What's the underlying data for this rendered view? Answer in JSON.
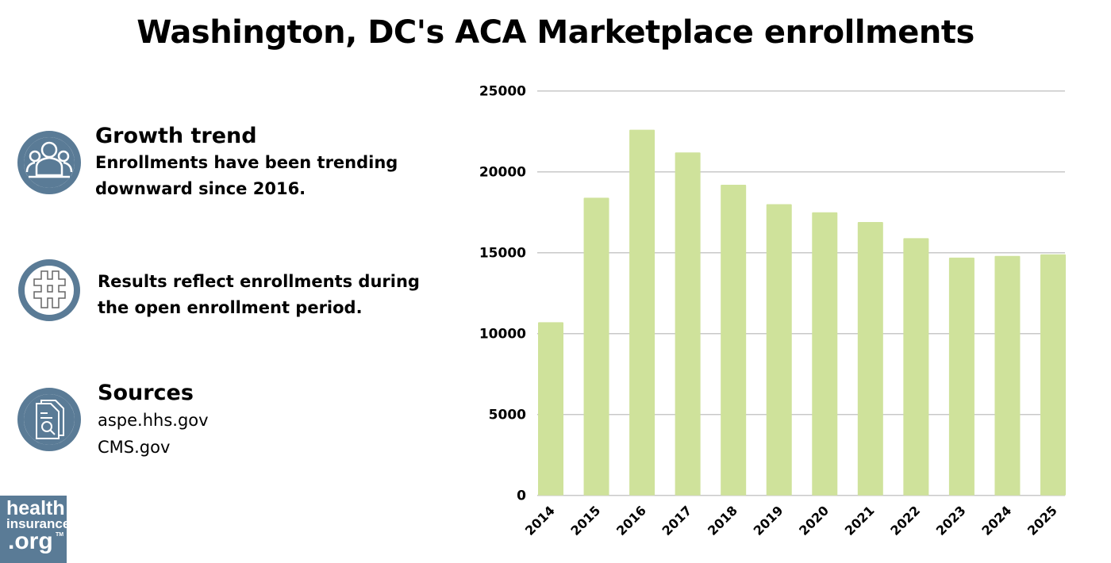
{
  "title": "Washington, DC's ACA Marketplace enrollments",
  "info": {
    "growth": {
      "heading": "Growth trend",
      "text_line1": "Enrollments have been trending",
      "text_line2": "downward since 2016.",
      "icon": "people-group-icon"
    },
    "note": {
      "text_line1": "Results reflect enrollments during",
      "text_line2": "the open enrollment period.",
      "icon": "hashtag-icon"
    },
    "sources": {
      "heading": "Sources",
      "items": [
        "aspe.hhs.gov",
        "CMS.gov"
      ],
      "icon": "document-search-icon"
    }
  },
  "logo": {
    "line1": "health",
    "line2": "insurance",
    "line3": ".org",
    "tm": "TM"
  },
  "colors": {
    "bar": "#cfe29b",
    "icon": "#5a7b96",
    "grid": "#c8c8c8"
  },
  "chart_data": {
    "type": "bar",
    "title": "",
    "xlabel": "",
    "ylabel": "",
    "categories": [
      "2014",
      "2015",
      "2016",
      "2017",
      "2018",
      "2019",
      "2020",
      "2021",
      "2022",
      "2023",
      "2024",
      "2025"
    ],
    "values": [
      10700,
      18400,
      22600,
      21200,
      19200,
      18000,
      17500,
      16900,
      15900,
      14700,
      14800,
      14900
    ],
    "ylim": [
      0,
      25000
    ],
    "yticks": [
      0,
      5000,
      10000,
      15000,
      20000,
      25000
    ],
    "ytick_labels": [
      "0",
      "5000",
      "10000",
      "15000",
      "20000",
      "25000"
    ],
    "grid": true,
    "legend": "none"
  }
}
